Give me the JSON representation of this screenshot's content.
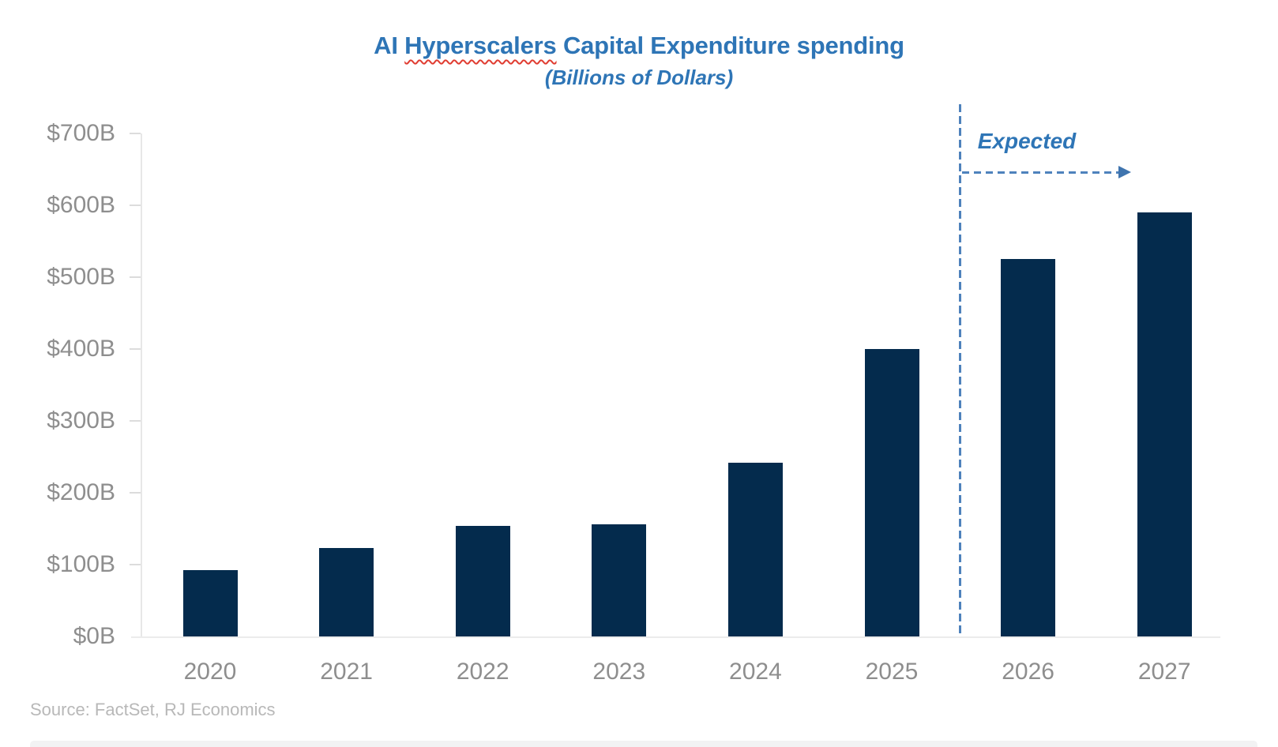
{
  "chart_data": {
    "type": "bar",
    "title": "AI Hyperscalers Capital Expenditure spending",
    "title_parts": {
      "pre": "AI ",
      "misspelled": "Hyperscalers",
      "post": " Capital Expenditure spending"
    },
    "subtitle": "(Billions of Dollars)",
    "categories": [
      "2020",
      "2021",
      "2022",
      "2023",
      "2024",
      "2025",
      "2026",
      "2027"
    ],
    "values": [
      92,
      123,
      154,
      156,
      242,
      400,
      525,
      590
    ],
    "unit": "USD billions",
    "xlabel": "",
    "ylabel": "",
    "ylim": [
      0,
      700
    ],
    "ytick_step": 100,
    "ytick_labels": [
      "$0B",
      "$100B",
      "$200B",
      "$300B",
      "$400B",
      "$500B",
      "$600B",
      "$700B"
    ],
    "gridlines": false,
    "legend": null,
    "annotation": {
      "label": "Expected",
      "applies_to": [
        "2026",
        "2027"
      ],
      "divider_between": [
        "2025",
        "2026"
      ]
    }
  },
  "source": {
    "label": "Source: FactSet, RJ Economics"
  },
  "colors": {
    "bar": "#042B4D",
    "title": "#2E75B6",
    "annotation_text": "#2E75B6",
    "dashed_line": "#4E82BC",
    "axis_text": "#8e8e8e",
    "source_text": "#b8b8b8",
    "squiggle": "#e03c31"
  }
}
